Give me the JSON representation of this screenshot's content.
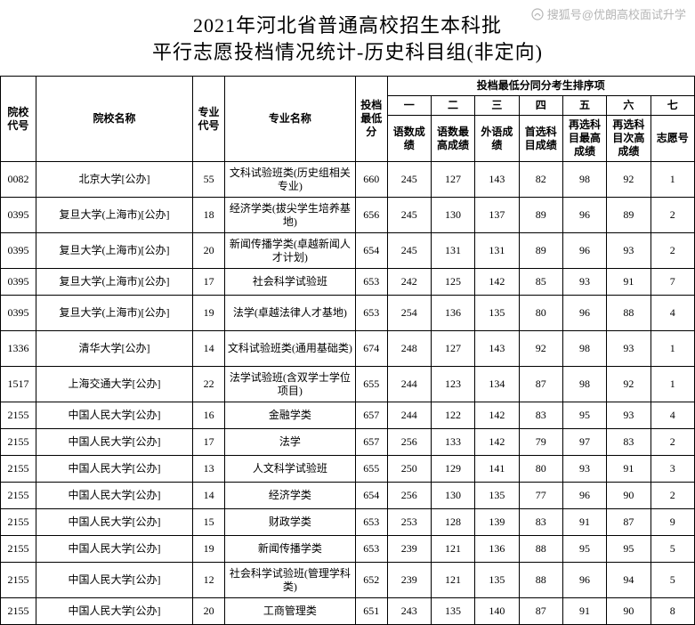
{
  "watermark": "搜狐号@优朗高校面试升学",
  "title_line1": "2021年河北省普通高校招生本科批",
  "title_line2": "平行志愿投档情况统计-历史科目组(非定向)",
  "header": {
    "code": "院校代号",
    "univ": "院校名称",
    "mcode": "专业代号",
    "major": "专业名称",
    "score": "投档最低分",
    "group": "投档最低分同分考生排序项",
    "nums": [
      "一",
      "二",
      "三",
      "四",
      "五",
      "六",
      "七"
    ],
    "sub": [
      "语数成绩",
      "语数最高成绩",
      "外语成绩",
      "首选科目成绩",
      "再选科目最高成绩",
      "再选科目次高成绩",
      "志愿号"
    ]
  },
  "rows": [
    {
      "tall": true,
      "code": "0082",
      "univ": "北京大学[公办]",
      "mcode": "55",
      "major": "文科试验班类(历史组相关专业)",
      "score": "660",
      "n": [
        "245",
        "127",
        "143",
        "82",
        "98",
        "92",
        "1"
      ]
    },
    {
      "tall": true,
      "code": "0395",
      "univ": "复旦大学(上海市)[公办]",
      "mcode": "18",
      "major": "经济学类(拔尖学生培养基地)",
      "score": "656",
      "n": [
        "245",
        "130",
        "137",
        "89",
        "96",
        "89",
        "2"
      ]
    },
    {
      "tall": true,
      "code": "0395",
      "univ": "复旦大学(上海市)[公办]",
      "mcode": "20",
      "major": "新闻传播学类(卓越新闻人才计划)",
      "score": "654",
      "n": [
        "245",
        "131",
        "131",
        "89",
        "96",
        "93",
        "2"
      ]
    },
    {
      "tall": false,
      "code": "0395",
      "univ": "复旦大学(上海市)[公办]",
      "mcode": "17",
      "major": "社会科学试验班",
      "score": "653",
      "n": [
        "242",
        "125",
        "142",
        "85",
        "93",
        "91",
        "7"
      ]
    },
    {
      "tall": true,
      "code": "0395",
      "univ": "复旦大学(上海市)[公办]",
      "mcode": "19",
      "major": "法学(卓越法律人才基地)",
      "score": "653",
      "n": [
        "254",
        "136",
        "135",
        "80",
        "96",
        "88",
        "4"
      ]
    },
    {
      "tall": true,
      "code": "1336",
      "univ": "清华大学[公办]",
      "mcode": "14",
      "major": "文科试验班类(通用基础类)",
      "score": "674",
      "n": [
        "248",
        "127",
        "143",
        "92",
        "98",
        "93",
        "1"
      ]
    },
    {
      "tall": true,
      "code": "1517",
      "univ": "上海交通大学[公办]",
      "mcode": "22",
      "major": "法学试验班(含双学士学位项目)",
      "score": "655",
      "n": [
        "244",
        "123",
        "134",
        "87",
        "98",
        "92",
        "1"
      ]
    },
    {
      "tall": false,
      "code": "2155",
      "univ": "中国人民大学[公办]",
      "mcode": "16",
      "major": "金融学类",
      "score": "657",
      "n": [
        "244",
        "122",
        "142",
        "83",
        "95",
        "93",
        "4"
      ]
    },
    {
      "tall": false,
      "code": "2155",
      "univ": "中国人民大学[公办]",
      "mcode": "17",
      "major": "法学",
      "score": "657",
      "n": [
        "256",
        "133",
        "142",
        "79",
        "97",
        "83",
        "2"
      ]
    },
    {
      "tall": false,
      "code": "2155",
      "univ": "中国人民大学[公办]",
      "mcode": "13",
      "major": "人文科学试验班",
      "score": "655",
      "n": [
        "250",
        "129",
        "141",
        "80",
        "93",
        "91",
        "3"
      ]
    },
    {
      "tall": false,
      "code": "2155",
      "univ": "中国人民大学[公办]",
      "mcode": "14",
      "major": "经济学类",
      "score": "654",
      "n": [
        "256",
        "130",
        "135",
        "77",
        "96",
        "90",
        "2"
      ]
    },
    {
      "tall": false,
      "code": "2155",
      "univ": "中国人民大学[公办]",
      "mcode": "15",
      "major": "财政学类",
      "score": "653",
      "n": [
        "253",
        "128",
        "139",
        "83",
        "91",
        "87",
        "9"
      ]
    },
    {
      "tall": false,
      "code": "2155",
      "univ": "中国人民大学[公办]",
      "mcode": "19",
      "major": "新闻传播学类",
      "score": "653",
      "n": [
        "239",
        "121",
        "136",
        "88",
        "95",
        "95",
        "5"
      ]
    },
    {
      "tall": true,
      "code": "2155",
      "univ": "中国人民大学[公办]",
      "mcode": "12",
      "major": "社会科学试验班(管理学科类)",
      "score": "652",
      "n": [
        "239",
        "121",
        "135",
        "88",
        "96",
        "94",
        "5"
      ]
    },
    {
      "tall": false,
      "code": "2155",
      "univ": "中国人民大学[公办]",
      "mcode": "20",
      "major": "工商管理类",
      "score": "651",
      "n": [
        "243",
        "135",
        "140",
        "87",
        "91",
        "90",
        "8"
      ]
    }
  ]
}
